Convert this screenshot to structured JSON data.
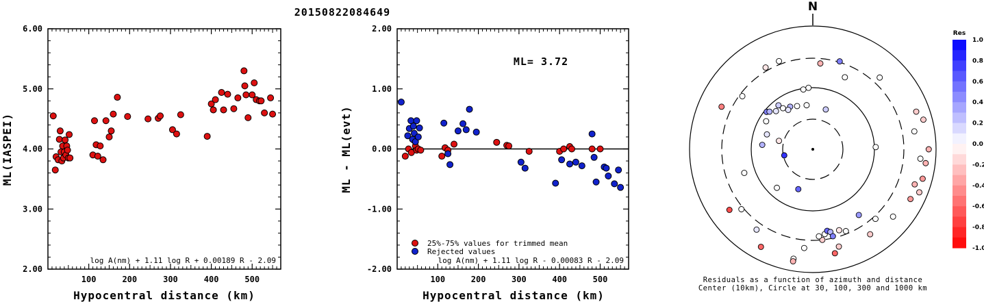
{
  "figure": {
    "title": "20150822084649",
    "north_label": "N",
    "colorbar_title": "Res",
    "colorbar_ticks": [
      "1.0",
      "0.8",
      "0.6",
      "0.4",
      "0.2",
      "0.0",
      "-0.2",
      "-0.4",
      "-0.6",
      "-0.8",
      "-1.0"
    ],
    "polar_caption_1": "Residuals as a function of azimuth and distance",
    "polar_caption_2": "Center (10km), Circle at 30, 100, 300 and 1000 km"
  },
  "chart_data": [
    {
      "type": "scatter",
      "title": "",
      "xlabel": "Hypocentral distance (km)",
      "ylabel": "ML(IASPEI)",
      "xlim": [
        0,
        570
      ],
      "ylim": [
        2.0,
        6.0
      ],
      "xticks": [
        "100",
        "200",
        "300",
        "400",
        "500"
      ],
      "yticks": [
        "2.00",
        "3.00",
        "4.00",
        "5.00",
        "6.00"
      ],
      "formula": "log A(nm) + 1.11 log R + 0.00189 R - 2.09",
      "series": [
        {
          "color": "#dd1111",
          "x": [
            13,
            18,
            20,
            25,
            28,
            30,
            32,
            34,
            36,
            38,
            40,
            42,
            44,
            46,
            48,
            50,
            52,
            54,
            110,
            114,
            118,
            122,
            128,
            135,
            142,
            150,
            155,
            160,
            170,
            195,
            245,
            270,
            275,
            305,
            315,
            325,
            390,
            400,
            405,
            410,
            425,
            430,
            440,
            455,
            465,
            480,
            482,
            485,
            490,
            500,
            505,
            510,
            518,
            522,
            530,
            545,
            550
          ],
          "y": [
            4.55,
            3.65,
            3.87,
            3.82,
            4.16,
            4.3,
            3.95,
            3.8,
            4.05,
            3.85,
            3.95,
            4.15,
            3.9,
            4.05,
            3.98,
            3.85,
            4.24,
            3.85,
            3.9,
            4.47,
            4.07,
            3.88,
            4.05,
            3.82,
            4.47,
            4.2,
            4.3,
            4.58,
            4.86,
            4.54,
            4.5,
            4.51,
            4.55,
            4.32,
            4.25,
            4.57,
            4.21,
            4.75,
            4.65,
            4.82,
            4.94,
            4.65,
            4.91,
            4.67,
            4.85,
            5.3,
            5.05,
            4.9,
            4.52,
            4.9,
            5.1,
            4.82,
            4.8,
            4.8,
            4.6,
            4.85,
            4.58
          ]
        }
      ]
    },
    {
      "type": "scatter",
      "title": "",
      "xlabel": "Hypocentral distance (km)",
      "ylabel": "ML - ML(evt)",
      "xlim": [
        0,
        570
      ],
      "ylim": [
        -2.0,
        2.0
      ],
      "xticks": [
        "100",
        "200",
        "300",
        "400",
        "500"
      ],
      "yticks": [
        "-2.00",
        "-1.00",
        "0.00",
        "1.00",
        "2.00"
      ],
      "annotation": "ML= 3.72",
      "formula": "log A(nm) + 1.11 log R - 0.00083 R - 2.09",
      "legend": [
        "25%-75% values for trimmed mean",
        "Rejected values"
      ],
      "series": [
        {
          "name": "25%-75% values for trimmed mean",
          "color": "#dd1111",
          "x": [
            20,
            28,
            35,
            42,
            45,
            48,
            52,
            58,
            110,
            118,
            125,
            140,
            245,
            270,
            275,
            325,
            400,
            410,
            425,
            430,
            480,
            500
          ],
          "y": [
            -0.12,
            0.0,
            -0.06,
            0.14,
            0.05,
            -0.02,
            0.0,
            -0.02,
            -0.12,
            0.02,
            -0.02,
            0.08,
            0.11,
            0.06,
            0.05,
            -0.04,
            -0.04,
            0.0,
            0.04,
            0.0,
            0.0,
            0.0
          ]
        },
        {
          "name": "Rejected values",
          "color": "#1122cc",
          "x": [
            10,
            26,
            30,
            34,
            38,
            40,
            42,
            45,
            48,
            52,
            55,
            115,
            125,
            130,
            150,
            162,
            170,
            178,
            195,
            305,
            315,
            390,
            405,
            425,
            440,
            455,
            480,
            485,
            490,
            510,
            515,
            520,
            535,
            545,
            550
          ],
          "y": [
            0.78,
            0.22,
            0.34,
            0.47,
            0.16,
            0.38,
            0.26,
            0.12,
            0.47,
            0.2,
            0.35,
            0.43,
            -0.08,
            -0.26,
            0.3,
            0.42,
            0.32,
            0.66,
            0.28,
            -0.22,
            -0.32,
            -0.57,
            -0.18,
            -0.25,
            -0.22,
            -0.28,
            0.25,
            -0.14,
            -0.55,
            -0.3,
            -0.32,
            -0.45,
            -0.58,
            -0.35,
            -0.64
          ]
        }
      ]
    },
    {
      "type": "scatter",
      "title": "",
      "polar": true,
      "north_up": true,
      "radial_scale": "log",
      "center_km": 10,
      "circles_km": [
        30,
        100,
        300,
        1000
      ],
      "colormap": {
        "min": -1.0,
        "max": 1.0,
        "neg_color": "#ff0000",
        "zero_color": "#ffffff",
        "pos_color": "#0000ff"
      },
      "stations": [
        {
          "az": -21,
          "dist": 340,
          "res": 0.0
        },
        {
          "az": 5,
          "dist": 250,
          "res": -0.3
        },
        {
          "az": 17,
          "dist": 310,
          "res": 0.5
        },
        {
          "az": 24,
          "dist": 190,
          "res": 0.0
        },
        {
          "az": -53,
          "dist": 270,
          "res": 0.0
        },
        {
          "az": -65,
          "dist": 430,
          "res": -0.5
        },
        {
          "az": -51,
          "dist": 92,
          "res": 0.5
        },
        {
          "az": -49,
          "dist": 85,
          "res": 0.3
        },
        {
          "az": -38,
          "dist": 80,
          "res": 0.2
        },
        {
          "az": -44,
          "dist": 72,
          "res": 0.1
        },
        {
          "az": -36,
          "dist": 66,
          "res": 0.0
        },
        {
          "az": -28,
          "dist": 60,
          "res": 0.3
        },
        {
          "az": -32,
          "dist": 56,
          "res": 0.1
        },
        {
          "az": -59,
          "dist": 76,
          "res": 0.0
        },
        {
          "az": -9,
          "dist": 96,
          "res": 0.0
        },
        {
          "az": -4,
          "dist": 100,
          "res": 0.0
        },
        {
          "az": -20,
          "dist": 55,
          "res": 0.0
        },
        {
          "az": -8,
          "dist": 52,
          "res": 0.0
        },
        {
          "az": 18,
          "dist": 47,
          "res": 0.2
        },
        {
          "az": -76,
          "dist": 36,
          "res": -0.1
        },
        {
          "az": -72,
          "dist": 60,
          "res": 0.1
        },
        {
          "az": -85,
          "dist": 66,
          "res": 0.3
        },
        {
          "az": -102,
          "dist": 29,
          "res": 0.8
        },
        {
          "az": -137,
          "dist": 71,
          "res": 0.0
        },
        {
          "az": -160,
          "dist": 48,
          "res": 0.6
        },
        {
          "az": -109,
          "dist": 150,
          "res": 0.0
        },
        {
          "az": 88,
          "dist": 105,
          "res": 0.0
        },
        {
          "az": -130,
          "dist": 325,
          "res": 0.0
        },
        {
          "az": -126,
          "dist": 470,
          "res": -0.7
        },
        {
          "az": -145,
          "dist": 390,
          "res": 0.1
        },
        {
          "az": -152,
          "dist": 620,
          "res": -0.6
        },
        {
          "az": -170,
          "dist": 635,
          "res": 0.0
        },
        {
          "az": -170,
          "dist": 700,
          "res": -0.3
        },
        {
          "az": -175,
          "dist": 405,
          "res": 0.0
        },
        {
          "az": 174,
          "dist": 300,
          "res": -0.2
        },
        {
          "az": 172,
          "dist": 245,
          "res": 0.0
        },
        {
          "az": 176,
          "dist": 260,
          "res": 0.0
        },
        {
          "az": 170,
          "dist": 220,
          "res": 0.6
        },
        {
          "az": 168,
          "dist": 235,
          "res": 0.3
        },
        {
          "az": 167,
          "dist": 280,
          "res": 0.5
        },
        {
          "az": 162,
          "dist": 240,
          "res": -0.1
        },
        {
          "az": 158,
          "dist": 270,
          "res": 0.0
        },
        {
          "az": 165,
          "dist": 430,
          "res": -0.2
        },
        {
          "az": 168,
          "dist": 530,
          "res": -0.6
        },
        {
          "az": 145,
          "dist": 200,
          "res": 0.4
        },
        {
          "az": 138,
          "dist": 330,
          "res": 0.0
        },
        {
          "az": 146,
          "dist": 460,
          "res": -0.2
        },
        {
          "az": 130,
          "dist": 500,
          "res": 0.0
        },
        {
          "az": 109,
          "dist": 560,
          "res": -0.3
        },
        {
          "az": 117,
          "dist": 600,
          "res": -0.4
        },
        {
          "az": 105,
          "dist": 700,
          "res": -0.4
        },
        {
          "az": 112,
          "dist": 730,
          "res": -0.2
        },
        {
          "az": 95,
          "dist": 565,
          "res": 0.0
        },
        {
          "az": 97,
          "dist": 700,
          "res": -0.3
        },
        {
          "az": 90,
          "dist": 760,
          "res": -0.3
        },
        {
          "az": 80,
          "dist": 470,
          "res": 0.0
        },
        {
          "az": 70,
          "dist": 610,
          "res": -0.2
        },
        {
          "az": 75,
          "dist": 720,
          "res": -0.2
        },
        {
          "az": 43,
          "dist": 390,
          "res": 0.0
        },
        {
          "az": -30,
          "dist": 340,
          "res": -0.1
        }
      ]
    }
  ]
}
